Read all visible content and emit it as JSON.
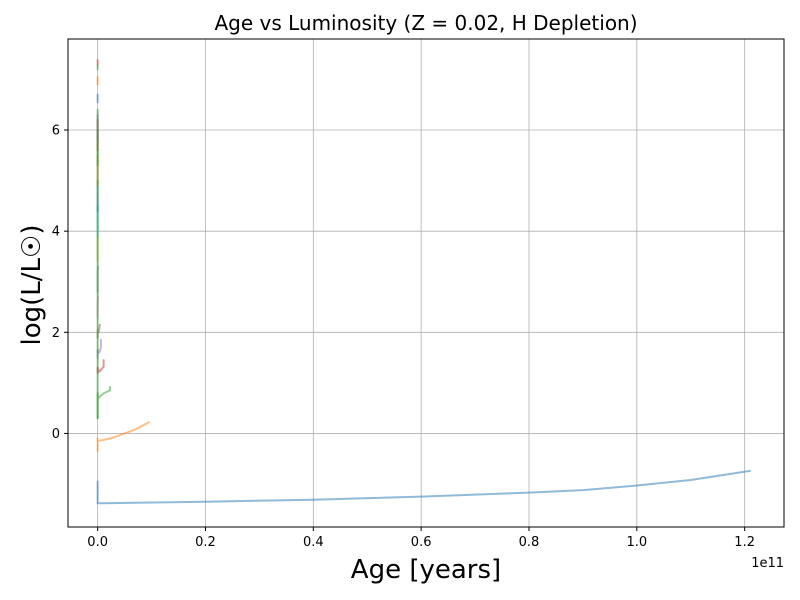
{
  "chart_data": {
    "type": "line",
    "title": "Age vs Luminosity (Z = 0.02, H Depletion)",
    "xlabel": "Age [years]",
    "ylabel": "log(L/L☉)",
    "x_offset_label": "1e11",
    "x_scale_factor": 100000000000.0,
    "xlim": [
      -5500000000.0,
      127300000000.0
    ],
    "ylim": [
      -1.85,
      7.8
    ],
    "x_ticks": [
      0,
      20000000000.0,
      40000000000.0,
      60000000000.0,
      80000000000.0,
      100000000000.0,
      120000000000.0
    ],
    "x_tick_labels": [
      "0.0",
      "0.2",
      "0.4",
      "0.6",
      "0.8",
      "1.0",
      "1.2"
    ],
    "y_ticks": [
      0,
      2,
      4,
      6
    ],
    "y_tick_labels": [
      "0",
      "2",
      "4",
      "6"
    ],
    "grid": true,
    "series": [
      {
        "color": "#1f77b4",
        "x": [
          0,
          0,
          0,
          1000000000.0,
          20000000000.0,
          40000000000.0,
          60000000000.0,
          80000000000.0,
          90000000000.0,
          100000000000.0,
          110000000000.0,
          121000000000.0
        ],
        "y": [
          -0.95,
          -1.2,
          -1.38,
          -1.38,
          -1.35,
          -1.31,
          -1.25,
          -1.17,
          -1.12,
          -1.03,
          -0.92,
          -0.74
        ]
      },
      {
        "color": "#ff7f0e",
        "x": [
          0,
          0,
          0,
          1000000000.0,
          3000000000.0,
          5000000000.0,
          7000000000.0,
          9500000000.0
        ],
        "y": [
          -0.35,
          -0.1,
          -0.15,
          -0.13,
          -0.08,
          0,
          0.08,
          0.22
        ]
      },
      {
        "color": "#2ca02c",
        "x": [
          0,
          0,
          0,
          500000000.0,
          1200000000.0,
          2300000000.0,
          2300000000.0
        ],
        "y": [
          0.3,
          0.8,
          0.68,
          0.74,
          0.8,
          0.85,
          0.92
        ]
      },
      {
        "color": "#d62728",
        "x": [
          0,
          0,
          300000000.0,
          1100000000.0,
          1100000000.0
        ],
        "y": [
          1.2,
          1.3,
          1.22,
          1.32,
          1.45
        ]
      },
      {
        "color": "#9467bd",
        "x": [
          0,
          0,
          300000000.0,
          600000000.0,
          600000000.0
        ],
        "y": [
          1.5,
          1.65,
          1.6,
          1.7,
          1.85
        ]
      },
      {
        "color": "#8c564b",
        "x": [
          0,
          0,
          200000000.0,
          400000000.0
        ],
        "y": [
          1.9,
          2.05,
          2.0,
          2.15
        ]
      },
      {
        "color": "#e377c2",
        "x": [
          0,
          0,
          100000000.0
        ],
        "y": [
          2.3,
          2.6,
          2.7
        ]
      },
      {
        "color": "#7f7f7f",
        "x": [
          0,
          0,
          100000000.0
        ],
        "y": [
          2.8,
          3.2,
          3.3
        ]
      },
      {
        "color": "#bcbd22",
        "x": [
          0,
          0
        ],
        "y": [
          3.4,
          3.9
        ]
      },
      {
        "color": "#17becf",
        "x": [
          0,
          0
        ],
        "y": [
          3.9,
          4.5
        ]
      },
      {
        "color": "#1f77b4",
        "x": [
          0,
          0
        ],
        "y": [
          4.4,
          5.0
        ]
      },
      {
        "color": "#ff7f0e",
        "x": [
          0,
          0
        ],
        "y": [
          4.9,
          5.5
        ]
      },
      {
        "color": "#2ca02c",
        "x": [
          0,
          0
        ],
        "y": [
          5.3,
          6.0
        ]
      },
      {
        "color": "#d62728",
        "x": [
          0,
          0
        ],
        "y": [
          5.6,
          6.2
        ]
      },
      {
        "color": "#9467bd",
        "x": [
          0,
          0
        ],
        "y": [
          5.8,
          6.3
        ]
      },
      {
        "color": "#1f77b4",
        "x": [
          0,
          0
        ],
        "y": [
          6.55,
          6.7
        ]
      },
      {
        "color": "#ff7f0e",
        "x": [
          0,
          0
        ],
        "y": [
          6.9,
          7.05
        ]
      },
      {
        "color": "#2ca02c",
        "x": [
          0,
          0
        ],
        "y": [
          7.2,
          7.28
        ]
      },
      {
        "color": "#d62728",
        "x": [
          0,
          0
        ],
        "y": [
          7.3,
          7.38
        ]
      },
      {
        "color": "#2ca02c",
        "x": [
          0,
          0
        ],
        "y": [
          0.3,
          6.4
        ]
      }
    ]
  }
}
